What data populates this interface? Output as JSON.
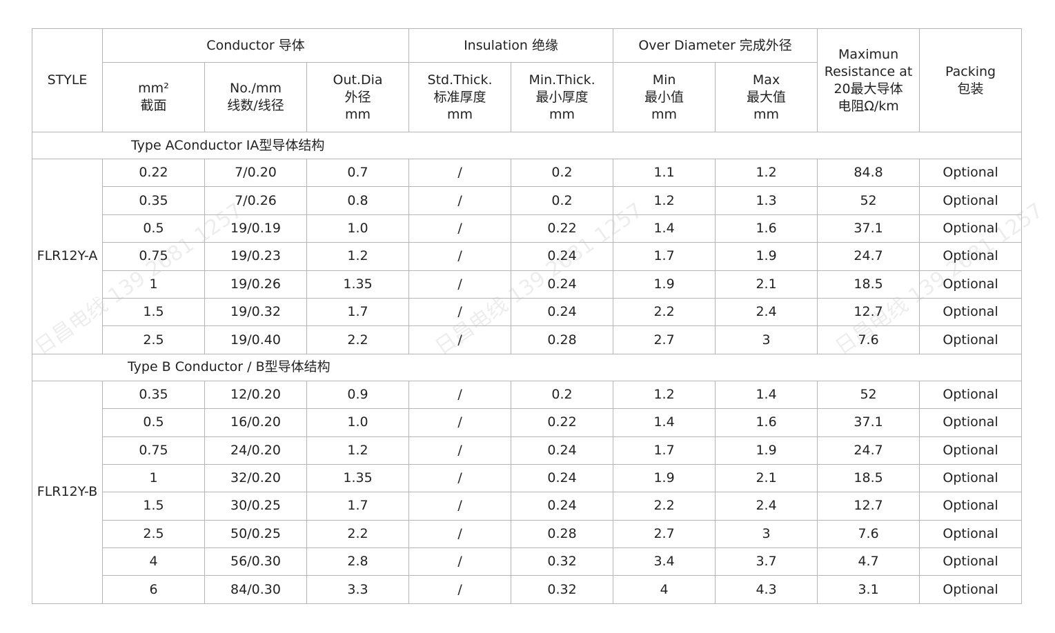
{
  "watermark": "日昌电线 139 2681 1257",
  "header": {
    "style": "STYLE",
    "conductor": "Conductor 导体",
    "insulation": "Insulation 绝缘",
    "over_diameter": "Over Diameter 完成外径",
    "max_resistance": "Maximun\nResistance at\n20最大导体\n电阻Ω/km",
    "packing": "Packing\n包装",
    "mm2": "mm²\n截面",
    "no_mm": "No./mm\n线数/线径",
    "out_dia": "Out.Dia\n外径\nmm",
    "std_thick": "Std.Thick.\n标准厚度\nmm",
    "min_thick": "Min.Thick.\n最小厚度\nmm",
    "od_min": "Min\n最小值\nmm",
    "od_max": "Max\n最大值\nmm"
  },
  "sections": [
    {
      "title": "Type AConductor IA型导体结构",
      "style": "FLR12Y-A",
      "rows": [
        [
          "0.22",
          "7/0.20",
          "0.7",
          "/",
          "0.2",
          "1.1",
          "1.2",
          "84.8",
          "Optional"
        ],
        [
          "0.35",
          "7/0.26",
          "0.8",
          "/",
          "0.2",
          "1.2",
          "1.3",
          "52",
          "Optional"
        ],
        [
          "0.5",
          "19/0.19",
          "1.0",
          "/",
          "0.22",
          "1.4",
          "1.6",
          "37.1",
          "Optional"
        ],
        [
          "0.75",
          "19/0.23",
          "1.2",
          "/",
          "0.24",
          "1.7",
          "1.9",
          "24.7",
          "Optional"
        ],
        [
          "1",
          "19/0.26",
          "1.35",
          "/",
          "0.24",
          "1.9",
          "2.1",
          "18.5",
          "Optional"
        ],
        [
          "1.5",
          "19/0.32",
          "1.7",
          "/",
          "0.24",
          "2.2",
          "2.4",
          "12.7",
          "Optional"
        ],
        [
          "2.5",
          "19/0.40",
          "2.2",
          "/",
          "0.28",
          "2.7",
          "3",
          "7.6",
          "Optional"
        ]
      ]
    },
    {
      "title": "Type B Conductor / B型导体结构",
      "style": "FLR12Y-B",
      "rows": [
        [
          "0.35",
          "12/0.20",
          "0.9",
          "/",
          "0.2",
          "1.2",
          "1.4",
          "52",
          "Optional"
        ],
        [
          "0.5",
          "16/0.20",
          "1.0",
          "/",
          "0.22",
          "1.4",
          "1.6",
          "37.1",
          "Optional"
        ],
        [
          "0.75",
          "24/0.20",
          "1.2",
          "/",
          "0.24",
          "1.7",
          "1.9",
          "24.7",
          "Optional"
        ],
        [
          "1",
          "32/0.20",
          "1.35",
          "/",
          "0.24",
          "1.9",
          "2.1",
          "18.5",
          "Optional"
        ],
        [
          "1.5",
          "30/0.25",
          "1.7",
          "/",
          "0.24",
          "2.2",
          "2.4",
          "12.7",
          "Optional"
        ],
        [
          "2.5",
          "50/0.25",
          "2.2",
          "/",
          "0.28",
          "2.7",
          "3",
          "7.6",
          "Optional"
        ],
        [
          "4",
          "56/0.30",
          "2.8",
          "/",
          "0.32",
          "3.4",
          "3.7",
          "4.7",
          "Optional"
        ],
        [
          "6",
          "84/0.30",
          "3.3",
          "/",
          "0.32",
          "4",
          "4.3",
          "3.1",
          "Optional"
        ]
      ]
    }
  ]
}
